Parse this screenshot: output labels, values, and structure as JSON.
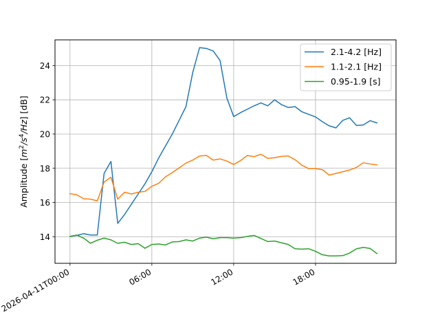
{
  "chart_data": {
    "type": "line",
    "xlabel": "",
    "ylabel_main": "Amplitude [",
    "ylabel_unit_suffix": "] [dB]",
    "ylim": [
      12.45,
      25.5
    ],
    "xlim_hours": [
      -1.1,
      23.9
    ],
    "grid": true,
    "legend_position": "top-right",
    "y_ticks": [
      14,
      16,
      18,
      20,
      22,
      24
    ],
    "x_ticks": [
      {
        "hour": 0,
        "label": "2026-04-11T00:00"
      },
      {
        "hour": 6,
        "label": "06:00"
      },
      {
        "hour": 12,
        "label": "12:00"
      },
      {
        "hour": 18,
        "label": "18:00"
      }
    ],
    "x": [
      0,
      0.5,
      1,
      1.5,
      2,
      2.5,
      3,
      3.5,
      4,
      4.5,
      5,
      5.5,
      6,
      6.5,
      7,
      7.5,
      8,
      8.5,
      9,
      9.5,
      10,
      10.5,
      11,
      11.5,
      12,
      12.5,
      13,
      13.5,
      14,
      14.5,
      15,
      15.5,
      16,
      16.5,
      17,
      17.5,
      18,
      18.5,
      19,
      19.5,
      20,
      20.5,
      21,
      21.5,
      22,
      22.5,
      23
    ],
    "series": [
      {
        "name": "2.1-4.2 [Hz]",
        "color": "#1f77b4",
        "values": [
          14.02,
          14.08,
          14.18,
          14.1,
          14.1,
          17.7,
          18.4,
          14.78,
          15.3,
          15.9,
          16.5,
          17.1,
          17.8,
          18.6,
          19.3,
          20.0,
          20.8,
          21.6,
          23.6,
          25.05,
          25.0,
          24.85,
          24.3,
          22.1,
          21.02,
          21.25,
          21.45,
          21.65,
          21.82,
          21.65,
          22.0,
          21.72,
          21.55,
          21.6,
          21.3,
          21.15,
          21.0,
          20.72,
          20.48,
          20.36,
          20.8,
          20.95,
          20.5,
          20.53,
          20.78,
          20.65,
          null
        ],
        "series_values_note": ""
      },
      {
        "name": "1.1-2.1 [Hz]",
        "color": "#ff7f0e",
        "values": [
          16.52,
          16.45,
          16.22,
          16.2,
          16.1,
          17.2,
          17.48,
          16.2,
          16.6,
          16.5,
          16.6,
          16.65,
          16.95,
          17.12,
          17.5,
          17.75,
          18.02,
          18.3,
          18.48,
          18.72,
          18.75,
          18.48,
          18.55,
          18.42,
          18.22,
          18.45,
          18.75,
          18.68,
          18.82,
          18.58,
          18.62,
          18.7,
          18.72,
          18.5,
          18.18,
          17.98,
          17.98,
          17.92,
          17.6,
          17.7,
          17.8,
          17.9,
          18.05,
          18.32,
          18.25,
          18.2,
          null
        ]
      },
      {
        "name": "0.95-1.9 [s]",
        "color": "#2ca02c",
        "values": [
          14.02,
          14.1,
          13.92,
          13.62,
          13.8,
          13.92,
          13.82,
          13.62,
          13.68,
          13.55,
          13.6,
          13.33,
          13.55,
          13.58,
          13.52,
          13.7,
          13.72,
          13.82,
          13.75,
          13.92,
          13.98,
          13.88,
          13.95,
          13.95,
          13.92,
          13.95,
          14.02,
          14.08,
          13.9,
          13.72,
          13.75,
          13.65,
          13.55,
          13.3,
          13.28,
          13.3,
          13.15,
          12.95,
          12.88,
          12.88,
          12.9,
          13.05,
          13.3,
          13.38,
          13.32,
          13.02,
          null
        ]
      }
    ]
  }
}
